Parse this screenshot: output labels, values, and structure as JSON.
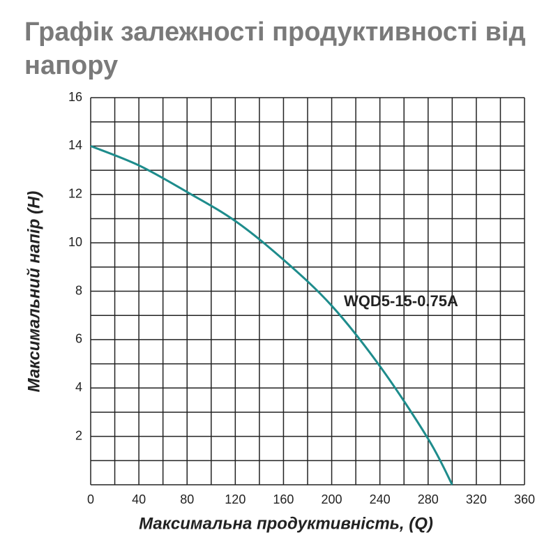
{
  "chart_data": {
    "type": "line",
    "title": "Графік залежності продуктивності від напору",
    "x_label": "Максимальна продуктивність, (Q)",
    "y_label": "Максимальний напір (H)",
    "x": [
      0,
      40,
      80,
      120,
      160,
      200,
      240,
      280,
      300
    ],
    "series": [
      {
        "name": "WQD5-15-0.75A",
        "color": "#1e8c8c",
        "values": [
          14,
          13.2,
          12.1,
          10.9,
          9.3,
          7.4,
          4.9,
          1.9,
          0
        ]
      }
    ],
    "xlim": [
      0,
      360
    ],
    "ylim": [
      0,
      16
    ],
    "xticks": [
      0,
      40,
      80,
      120,
      160,
      200,
      240,
      280,
      320,
      360
    ],
    "yticks": [
      2,
      4,
      6,
      8,
      10,
      12,
      14,
      16
    ],
    "x_minor_ticks": [
      20,
      60,
      100,
      140,
      180,
      220,
      260,
      300,
      340
    ],
    "y_minor_ticks": [
      0,
      1,
      3,
      5,
      7,
      9,
      11,
      13,
      15
    ],
    "grid": true
  }
}
